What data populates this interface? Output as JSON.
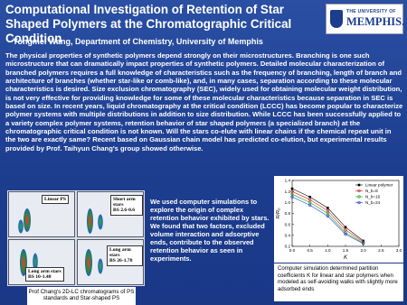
{
  "header": {
    "title": "Computational Investigation of Retention of Star Shaped Polymers at the Chromatographic Critical Condition",
    "authors": "Yongmei Wang,  Department of Chemistry, University of Memphis",
    "logo_top": "THE UNIVERSITY OF",
    "logo_name": "MEMPHIS."
  },
  "abstract": "The physical properties of synthetic polymers depend strongly on their microstructures. Branching is one such microstructure that can dramatically impact properties of synthetic polymers. Detailed molecular characterization of branched polymers requires a full knowledge of characteristics such as the frequency of branching, length of branch and architecture of branches (whether star-like or comb-like), and, in many cases, separation according to these molecular characteristics is desired. Size exclusion chromatography (SEC), widely used for obtaining molecular weight distribution, is not very effective for providing knowledge for some of these molecular characteristics because separation in SEC is based on size. In recent years, liquid chromatography at the critical condition (LCCC) has become popular to characterize polymer systems with multiple distributions in addition to size distribution. While LCCC has been successfully applied to a variety complex polymer systems, retention behavior of star shaped polymers (a specialized branch) at the chromatographic critical condition is not known. Will the stars co-elute with linear chains if the chemical repeat unit in the two are exactly same? Recent based on Gaussian chain model has predicted co-elution, but experimental results provided by Prof. Taihyun Chang's group showed otherwise.",
  "figure_left": {
    "panels": [
      {
        "title": "Linear PS"
      },
      {
        "title": "Short arm stars",
        "subtitle": "BS 2.6-0.6"
      },
      {
        "title": "Long arm stars",
        "subtitle": "BS 10-1.48"
      },
      {
        "title": "Long arm stars",
        "subtitle": "BS 26-1.78"
      }
    ],
    "caption": "Prof Chang's 2D-LC chromatograms of PS standards and Star-shaped PS"
  },
  "middle_text": "We used computer simulations to explore the origin of complex retention behavior exhibited by stars. We found that two factors, excluded volume interaction and adsorptive ends, contribute to the observed retention behavior as seen in experiments.",
  "chart_data": {
    "type": "line",
    "x_label": "K",
    "y_label": "R/R₀",
    "x": [
      0.0,
      0.5,
      1.0,
      1.5,
      2.0
    ],
    "series": [
      {
        "name": "Linear polymer",
        "color": "#000000",
        "marker": "square",
        "values": [
          1.25,
          1.1,
          0.9,
          0.55,
          0.3
        ]
      },
      {
        "name": "N_b=8",
        "color": "#d62020",
        "marker": "circle",
        "values": [
          1.2,
          1.05,
          0.85,
          0.5,
          0.28
        ]
      },
      {
        "name": "N_b=16",
        "color": "#1a9a1a",
        "marker": "circle",
        "values": [
          1.15,
          1.0,
          0.8,
          0.45,
          0.26
        ]
      },
      {
        "name": "N_b=24",
        "color": "#1f3fd0",
        "marker": "circle",
        "values": [
          1.1,
          0.95,
          0.75,
          0.42,
          0.25
        ]
      }
    ],
    "xlim": [
      0.0,
      3.0
    ],
    "ylim": [
      0.2,
      1.4
    ],
    "xticks": [
      {
        "value": 0,
        "label": "0.0"
      },
      0.5,
      {
        "value": 1,
        "label": "1.0"
      },
      1.5,
      {
        "value": 2,
        "label": "2.0"
      },
      2.5,
      {
        "value": 3,
        "label": "3.0"
      }
    ],
    "yticks": [
      0.2,
      0.4,
      0.6,
      0.8,
      {
        "value": 1,
        "label": "1.0"
      },
      1.2,
      1.4
    ],
    "legend": "upper right",
    "caption": "Computer simulation determined partition coefficients K for linear and star polymers when modeled as self-avoiding walks with slightly more adsorbed ends"
  }
}
